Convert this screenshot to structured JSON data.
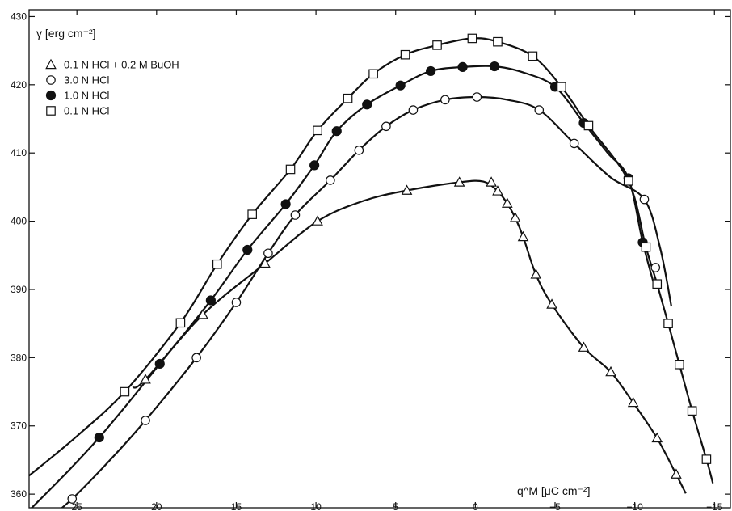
{
  "chart_data": {
    "type": "scatter",
    "title": "",
    "xlabel": "q^M [μC cm⁻²]",
    "ylabel": "γ [erg cm⁻²]",
    "xlim": [
      28,
      -16
    ],
    "ylim": [
      358,
      431
    ],
    "x_ticks": [
      25,
      20,
      15,
      10,
      5,
      0,
      -5,
      -10,
      -15
    ],
    "x_tick_labels": [
      "25",
      "20",
      "15",
      "10",
      "5",
      "0",
      "−5",
      "−10",
      "−15"
    ],
    "y_ticks": [
      360,
      370,
      380,
      390,
      400,
      410,
      420,
      430
    ],
    "y_tick_labels": [
      "360",
      "370",
      "380",
      "390",
      "400",
      "410",
      "420",
      "430"
    ],
    "grid": false,
    "legend_position": "top-left",
    "series": [
      {
        "name": "0.1 N HCl + 0.2 M BuOH",
        "marker": "triangle-open",
        "points": [
          [
            20.7,
            376.8
          ],
          [
            17.1,
            386.3
          ],
          [
            13.2,
            393.8
          ],
          [
            9.9,
            400.0
          ],
          [
            4.3,
            404.5
          ],
          [
            1.0,
            405.7
          ],
          [
            -1.0,
            405.7
          ],
          [
            -1.4,
            404.4
          ],
          [
            -2.0,
            402.6
          ],
          [
            -2.5,
            400.5
          ],
          [
            -3.0,
            397.7
          ],
          [
            -3.8,
            392.2
          ],
          [
            -4.8,
            387.8
          ],
          [
            -6.8,
            381.5
          ],
          [
            -8.5,
            377.9
          ],
          [
            -9.9,
            373.4
          ],
          [
            -11.4,
            368.2
          ],
          [
            -12.6,
            362.9
          ]
        ],
        "curve": [
          [
            21.5,
            375.6
          ],
          [
            20.7,
            376.8
          ],
          [
            17.1,
            386.3
          ],
          [
            13.2,
            393.8
          ],
          [
            9.9,
            400.0
          ],
          [
            7.0,
            403.0
          ],
          [
            4.3,
            404.5
          ],
          [
            1.0,
            405.7
          ],
          [
            -0.5,
            405.8
          ],
          [
            -1.4,
            404.4
          ],
          [
            -2.0,
            402.6
          ],
          [
            -2.5,
            400.5
          ],
          [
            -3.0,
            397.7
          ],
          [
            -3.8,
            392.2
          ],
          [
            -4.8,
            387.8
          ],
          [
            -6.8,
            381.5
          ],
          [
            -8.5,
            377.9
          ],
          [
            -9.9,
            373.4
          ],
          [
            -11.4,
            368.2
          ],
          [
            -12.6,
            362.9
          ],
          [
            -13.2,
            360.1
          ]
        ]
      },
      {
        "name": "3.0 N HCl",
        "marker": "circle-open",
        "points": [
          [
            25.3,
            359.3
          ],
          [
            20.7,
            370.8
          ],
          [
            17.5,
            380.0
          ],
          [
            15.0,
            388.1
          ],
          [
            13.0,
            395.3
          ],
          [
            11.3,
            400.9
          ],
          [
            9.1,
            406.0
          ],
          [
            7.3,
            410.4
          ],
          [
            5.6,
            413.9
          ],
          [
            3.9,
            416.3
          ],
          [
            1.9,
            417.8
          ],
          [
            -0.1,
            418.2
          ],
          [
            -4.0,
            416.3
          ],
          [
            -6.2,
            411.4
          ],
          [
            -10.6,
            403.2
          ],
          [
            -11.3,
            393.2
          ]
        ],
        "curve": [
          [
            27.5,
            355.0
          ],
          [
            25.3,
            359.3
          ],
          [
            22.8,
            365.3
          ],
          [
            20.7,
            370.8
          ],
          [
            17.5,
            380.0
          ],
          [
            15.0,
            388.1
          ],
          [
            13.0,
            395.3
          ],
          [
            11.3,
            400.9
          ],
          [
            9.1,
            406.0
          ],
          [
            7.3,
            410.4
          ],
          [
            5.6,
            413.9
          ],
          [
            3.9,
            416.3
          ],
          [
            1.9,
            417.8
          ],
          [
            -0.1,
            418.2
          ],
          [
            -2.0,
            417.8
          ],
          [
            -4.0,
            416.3
          ],
          [
            -6.2,
            411.4
          ],
          [
            -8.5,
            406.4
          ],
          [
            -10.6,
            403.2
          ],
          [
            -11.6,
            396.0
          ],
          [
            -12.3,
            387.5
          ]
        ]
      },
      {
        "name": "1.0 N HCl",
        "marker": "circle-filled",
        "points": [
          [
            23.6,
            368.3
          ],
          [
            19.8,
            379.1
          ],
          [
            16.6,
            388.4
          ],
          [
            14.3,
            395.8
          ],
          [
            11.9,
            402.5
          ],
          [
            10.1,
            408.2
          ],
          [
            8.7,
            413.2
          ],
          [
            6.8,
            417.1
          ],
          [
            4.7,
            419.9
          ],
          [
            2.8,
            422.0
          ],
          [
            0.8,
            422.6
          ],
          [
            -1.2,
            422.7
          ],
          [
            -5.0,
            419.7
          ],
          [
            -6.8,
            414.4
          ],
          [
            -9.6,
            406.3
          ],
          [
            -10.5,
            396.9
          ]
        ],
        "curve": [
          [
            28.0,
            357.6
          ],
          [
            25.5,
            363.5
          ],
          [
            23.6,
            368.3
          ],
          [
            21.8,
            373.3
          ],
          [
            19.8,
            379.1
          ],
          [
            16.6,
            388.4
          ],
          [
            14.3,
            395.8
          ],
          [
            11.9,
            402.5
          ],
          [
            10.1,
            408.2
          ],
          [
            8.7,
            413.2
          ],
          [
            6.8,
            417.1
          ],
          [
            4.7,
            419.9
          ],
          [
            2.8,
            422.0
          ],
          [
            0.8,
            422.6
          ],
          [
            -1.2,
            422.7
          ],
          [
            -3.0,
            421.8
          ],
          [
            -5.0,
            419.7
          ],
          [
            -6.8,
            414.4
          ],
          [
            -8.3,
            410.0
          ],
          [
            -9.6,
            406.3
          ],
          [
            -10.5,
            396.9
          ],
          [
            -11.2,
            390.8
          ]
        ]
      },
      {
        "name": "0.1 N HCl",
        "marker": "square-open",
        "points": [
          [
            22.0,
            375.0
          ],
          [
            18.5,
            385.1
          ],
          [
            16.2,
            393.7
          ],
          [
            14.0,
            401.0
          ],
          [
            11.6,
            407.6
          ],
          [
            9.9,
            413.3
          ],
          [
            8.0,
            418.0
          ],
          [
            6.4,
            421.6
          ],
          [
            4.4,
            424.4
          ],
          [
            2.4,
            425.8
          ],
          [
            0.2,
            426.8
          ],
          [
            -1.4,
            426.3
          ],
          [
            -3.6,
            424.2
          ],
          [
            -5.4,
            419.7
          ],
          [
            -7.1,
            414.0
          ],
          [
            -9.6,
            405.9
          ],
          [
            -10.7,
            396.2
          ],
          [
            -11.4,
            390.8
          ],
          [
            -12.1,
            385.0
          ],
          [
            -12.8,
            379.0
          ],
          [
            -13.6,
            372.2
          ],
          [
            -14.5,
            365.1
          ]
        ],
        "curve": [
          [
            28.0,
            362.7
          ],
          [
            25.0,
            368.5
          ],
          [
            22.0,
            375.0
          ],
          [
            18.5,
            385.1
          ],
          [
            16.2,
            393.7
          ],
          [
            14.0,
            401.0
          ],
          [
            11.6,
            407.6
          ],
          [
            9.9,
            413.3
          ],
          [
            8.0,
            418.0
          ],
          [
            6.4,
            421.6
          ],
          [
            4.4,
            424.4
          ],
          [
            2.4,
            425.8
          ],
          [
            0.2,
            426.8
          ],
          [
            -1.4,
            426.3
          ],
          [
            -3.6,
            424.2
          ],
          [
            -5.4,
            419.7
          ],
          [
            -7.1,
            414.0
          ],
          [
            -9.6,
            405.9
          ],
          [
            -10.7,
            396.2
          ],
          [
            -11.4,
            390.8
          ],
          [
            -12.1,
            385.0
          ],
          [
            -12.8,
            379.0
          ],
          [
            -13.6,
            372.2
          ],
          [
            -14.5,
            365.1
          ],
          [
            -14.9,
            361.6
          ]
        ]
      }
    ]
  }
}
